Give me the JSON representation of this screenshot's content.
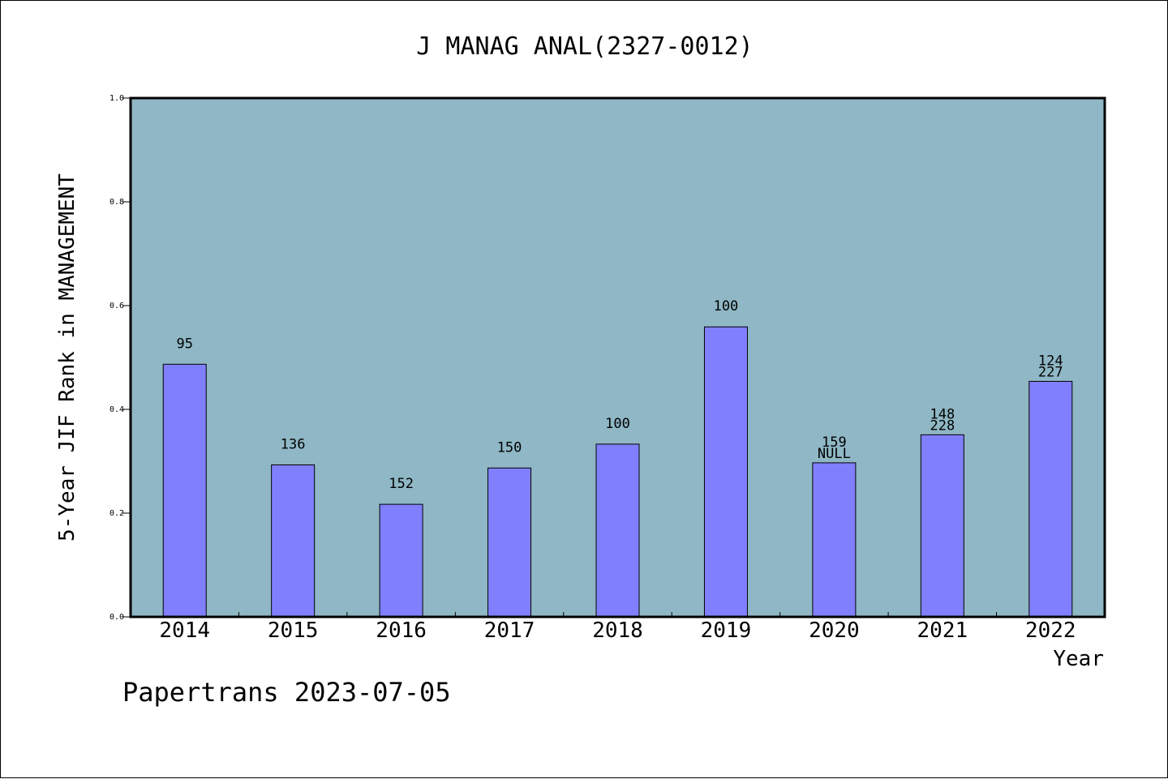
{
  "chart_data": {
    "type": "bar",
    "title": "J MANAG ANAL(2327-0012)",
    "xlabel": "Year",
    "ylabel": "5-Year JIF Rank in MANAGEMENT",
    "ylim": [
      0,
      1.0
    ],
    "yticks": [
      "0.0",
      "0.2",
      "0.4",
      "0.6",
      "0.8",
      "1.0"
    ],
    "categories": [
      "2014",
      "2015",
      "2016",
      "2017",
      "2018",
      "2019",
      "2020",
      "2021",
      "2022"
    ],
    "values": [
      0.487,
      0.293,
      0.217,
      0.287,
      0.333,
      0.559,
      0.297,
      0.351,
      0.454
    ],
    "bar_labels": [
      [
        "95"
      ],
      [
        "136"
      ],
      [
        "152"
      ],
      [
        "150"
      ],
      [
        "100"
      ],
      [
        "100"
      ],
      [
        "159",
        "NULL"
      ],
      [
        "148",
        "228"
      ],
      [
        "124",
        "227"
      ]
    ],
    "grid": false,
    "colors": {
      "plot_background": "#8fb7c5",
      "bar_fill": "#8080ff",
      "bar_stroke": "#000000"
    }
  },
  "footer": "Papertrans 2023-07-05"
}
